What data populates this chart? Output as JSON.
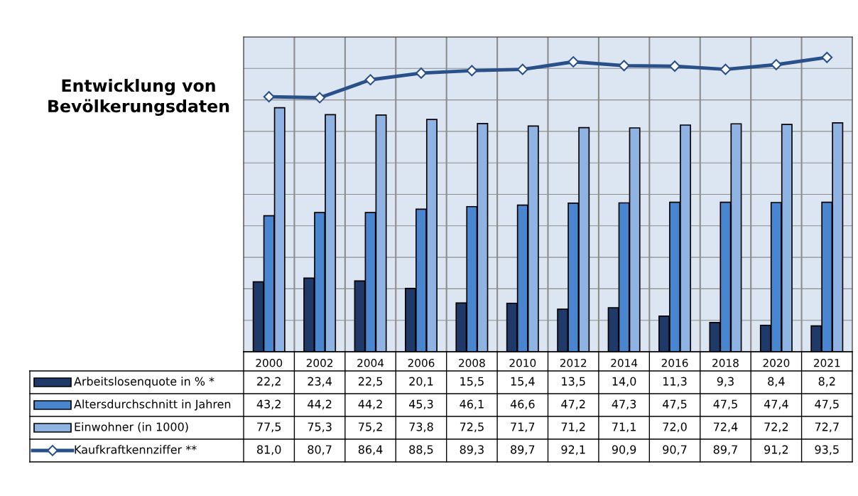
{
  "chart_data": {
    "type": "bar",
    "title": "Entwicklung von\nBevölkerungsdaten",
    "categories": [
      "2000",
      "2002",
      "2004",
      "2006",
      "2008",
      "2010",
      "2012",
      "2014",
      "2016",
      "2018",
      "2020",
      "2021"
    ],
    "series": [
      {
        "name": "Arbeitslosenquote in % *",
        "color": "#1f3a68",
        "values": [
          22.2,
          23.4,
          22.5,
          20.1,
          15.5,
          15.4,
          13.5,
          14.0,
          11.3,
          9.3,
          8.4,
          8.2
        ],
        "value_labels": [
          "22,2",
          "23,4",
          "22,5",
          "20,1",
          "15,5",
          "15,4",
          "13,5",
          "14,0",
          "11,3",
          "9,3",
          "8,4",
          "8,2"
        ]
      },
      {
        "name": "Altersdurchschnitt in Jahren",
        "color": "#4a86d0",
        "values": [
          43.2,
          44.2,
          44.2,
          45.3,
          46.1,
          46.6,
          47.2,
          47.3,
          47.5,
          47.5,
          47.4,
          47.5
        ],
        "value_labels": [
          "43,2",
          "44,2",
          "44,2",
          "45,3",
          "46,1",
          "46,6",
          "47,2",
          "47,3",
          "47,5",
          "47,5",
          "47,4",
          "47,5"
        ]
      },
      {
        "name": "Einwohner (in 1000)",
        "color": "#8fb4e3",
        "values": [
          77.5,
          75.3,
          75.2,
          73.8,
          72.5,
          71.7,
          71.2,
          71.1,
          72.0,
          72.4,
          72.2,
          72.7
        ],
        "value_labels": [
          "77,5",
          "75,3",
          "75,2",
          "73,8",
          "72,5",
          "71,7",
          "71,2",
          "71,1",
          "72,0",
          "72,4",
          "72,2",
          "72,7"
        ]
      },
      {
        "name": "Kaufkraftkennziffer **",
        "type": "line",
        "marker": "diamond",
        "color": "#2a5089",
        "values": [
          81.0,
          80.7,
          86.4,
          88.5,
          89.3,
          89.7,
          92.1,
          90.9,
          90.7,
          89.7,
          91.2,
          93.5
        ],
        "value_labels": [
          "81,0",
          "80,7",
          "86,4",
          "88,5",
          "89,3",
          "89,7",
          "92,1",
          "90,9",
          "90,7",
          "89,7",
          "91,2",
          "93,5"
        ]
      }
    ],
    "ylim": [
      0,
      100
    ],
    "yticks": [
      {
        "value": 0,
        "label": null
      },
      {
        "value": 10,
        "label": null
      },
      {
        "value": 20,
        "label": null
      },
      {
        "value": 30,
        "label": null
      },
      {
        "value": 40,
        "label": null
      },
      {
        "value": 50,
        "label": null
      },
      {
        "value": 60,
        "label": null
      },
      {
        "value": 70,
        "label": null
      },
      {
        "value": 80,
        "label": null
      },
      {
        "value": 90,
        "label": null
      },
      {
        "value": 100,
        "label": null
      }
    ],
    "tick_labels": "x",
    "grid": "y",
    "legend": "bottom left"
  }
}
